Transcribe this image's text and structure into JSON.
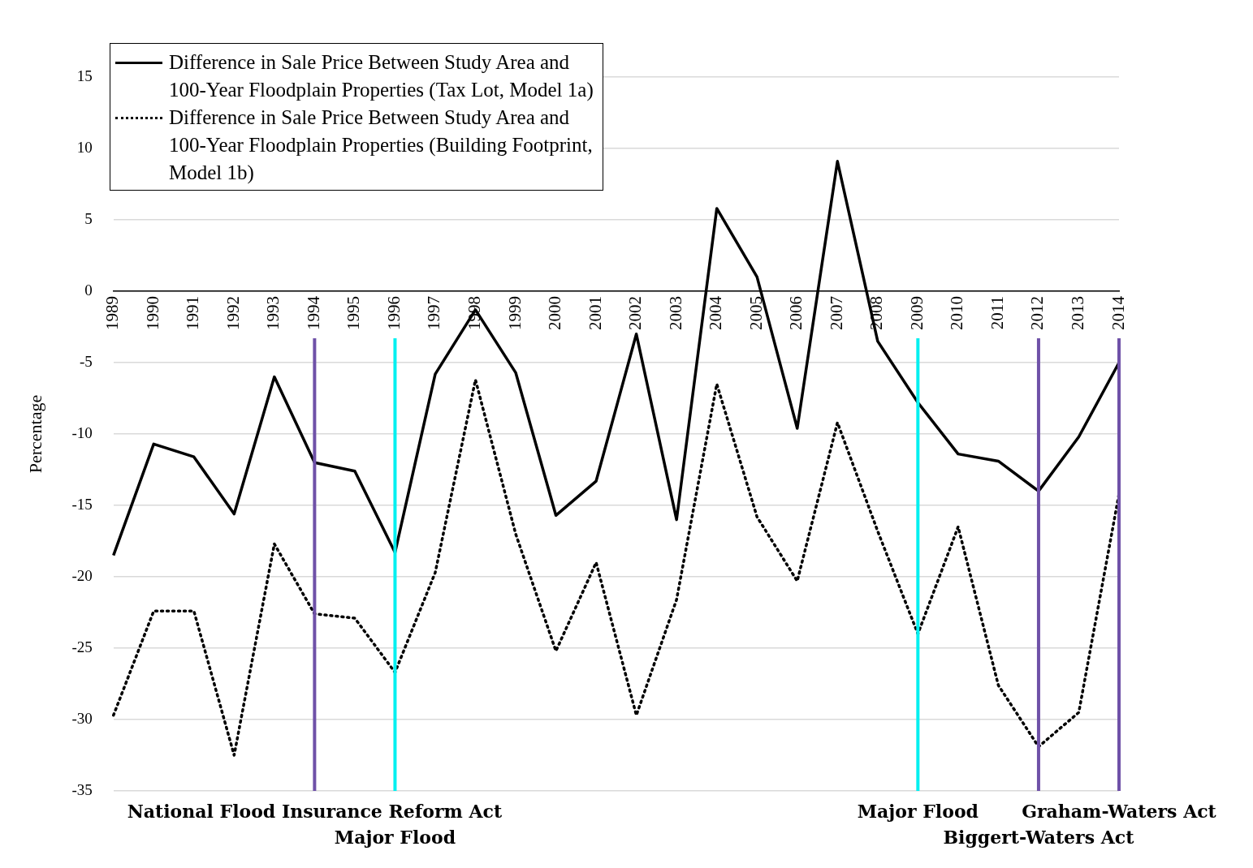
{
  "chart_data": {
    "type": "line",
    "ylabel": "Percentage",
    "categories": [
      "1989",
      "1990",
      "1991",
      "1992",
      "1993",
      "1994",
      "1995",
      "1996",
      "1997",
      "1998",
      "1999",
      "2000",
      "2001",
      "2002",
      "2003",
      "2004",
      "2005",
      "2006",
      "2007",
      "2008",
      "2009",
      "2010",
      "2011",
      "2012",
      "2013",
      "2014"
    ],
    "series": [
      {
        "name": "Difference in Sale Price Between Study Area and 100-Year Floodplain Properties (Tax Lot, Model 1a)",
        "color": "#000000",
        "line_style": "solid",
        "values": [
          -18.5,
          -10.7,
          -11.6,
          -15.6,
          -6.0,
          -12.0,
          -12.6,
          -18.3,
          -5.8,
          -1.3,
          -5.7,
          -15.7,
          -13.3,
          -3.0,
          -16.0,
          5.8,
          1.0,
          -9.6,
          9.1,
          -3.5,
          -7.8,
          -11.4,
          -11.9,
          -14.0,
          -10.2,
          -5.0
        ]
      },
      {
        "name": "Difference in Sale Price Between Study Area and 100-Year Floodplain Properties (Building Footprint, Model 1b)",
        "color": "#000000",
        "line_style": "dotted",
        "values": [
          -29.7,
          -22.4,
          -22.4,
          -32.5,
          -17.7,
          -22.6,
          -22.9,
          -26.7,
          -19.7,
          -6.2,
          -17.0,
          -25.2,
          -19.0,
          -29.7,
          -21.6,
          -6.5,
          -15.8,
          -20.3,
          -9.2,
          -16.8,
          -24.0,
          -16.5,
          -27.6,
          -31.9,
          -29.5,
          -14.2
        ]
      }
    ],
    "ylim": [
      -35,
      15
    ],
    "yticks": [
      -35,
      -30,
      -25,
      -20,
      -15,
      -10,
      -5,
      0,
      5,
      10,
      15
    ],
    "grid": "y",
    "legend": "top left",
    "marker": "none",
    "ref_lines": [
      {
        "axis": "x",
        "value": "1994",
        "label": "National Flood Insurance Reform Act",
        "color": "#6f51a8"
      },
      {
        "axis": "x",
        "value": "1996",
        "label": "Major Flood",
        "color": "#00f0f0"
      },
      {
        "axis": "x",
        "value": "2009",
        "label": "Major Flood",
        "color": "#00f0f0"
      },
      {
        "axis": "x",
        "value": "2012",
        "label": "Biggert-Waters Act",
        "color": "#6f51a8"
      },
      {
        "axis": "x",
        "value": "2014",
        "label": "Graham-Waters Act",
        "color": "#6f51a8"
      }
    ]
  }
}
